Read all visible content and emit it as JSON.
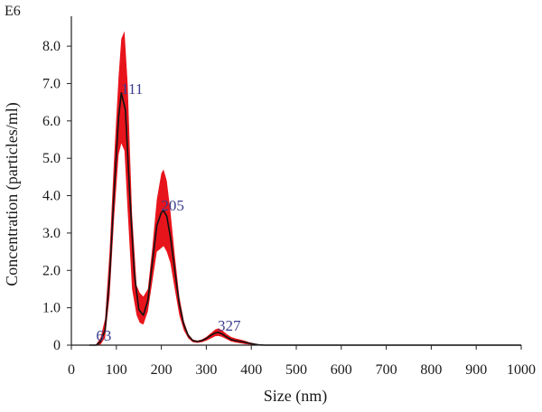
{
  "chart_data": {
    "type": "line",
    "title": "",
    "scale_label": "E6",
    "xlabel": "Size (nm)",
    "ylabel": "Concentration (particles/ml)",
    "xlim": [
      0,
      1000
    ],
    "ylim": [
      0,
      8.8
    ],
    "x_ticks": [
      0,
      100,
      200,
      300,
      400,
      500,
      600,
      700,
      800,
      900,
      1000
    ],
    "x_tick_labels": [
      "0",
      "100",
      "200",
      "300",
      "400",
      "500",
      "600",
      "700",
      "800",
      "900",
      "1000"
    ],
    "y_ticks": [
      0,
      1,
      2,
      3,
      4,
      5,
      6,
      7,
      8
    ],
    "y_tick_labels": [
      "0",
      "1.0",
      "2.0",
      "3.0",
      "4.0",
      "5.0",
      "6.0",
      "7.0",
      "8.0"
    ],
    "grid": false,
    "colors": {
      "mean_line": "#111111",
      "error_band": "#e8141c",
      "peak_labels": "#3b3b8f"
    },
    "series": [
      {
        "role": "mean",
        "x": [
          40,
          55,
          65,
          75,
          85,
          95,
          105,
          111,
          120,
          130,
          140,
          150,
          160,
          170,
          180,
          190,
          200,
          205,
          212,
          220,
          230,
          240,
          250,
          260,
          270,
          280,
          290,
          300,
          310,
          320,
          327,
          335,
          345,
          355,
          365,
          375,
          385,
          395,
          405,
          415,
          430,
          1000
        ],
        "y": [
          0,
          0,
          0.1,
          0.4,
          1.8,
          4.1,
          6.1,
          6.75,
          6.3,
          4.0,
          1.9,
          0.95,
          0.8,
          1.2,
          2.2,
          3.2,
          3.55,
          3.6,
          3.45,
          2.9,
          2.0,
          1.1,
          0.55,
          0.25,
          0.12,
          0.1,
          0.12,
          0.18,
          0.26,
          0.33,
          0.34,
          0.3,
          0.22,
          0.15,
          0.12,
          0.1,
          0.08,
          0.05,
          0.03,
          0.01,
          0,
          0
        ]
      },
      {
        "role": "error_band_upper",
        "x": [
          40,
          55,
          65,
          75,
          85,
          95,
          105,
          111,
          118,
          125,
          135,
          145,
          152,
          160,
          170,
          180,
          190,
          200,
          205,
          212,
          220,
          230,
          240,
          250,
          260,
          270,
          280,
          290,
          300,
          310,
          320,
          327,
          335,
          345,
          355,
          365,
          375,
          385,
          395,
          405,
          415,
          430
        ],
        "y": [
          0,
          0.02,
          0.2,
          0.7,
          2.5,
          5.0,
          7.2,
          8.2,
          8.4,
          7.0,
          3.5,
          1.6,
          1.4,
          1.3,
          1.5,
          2.6,
          3.9,
          4.6,
          4.7,
          4.4,
          3.6,
          2.4,
          1.3,
          0.65,
          0.3,
          0.15,
          0.12,
          0.15,
          0.22,
          0.32,
          0.42,
          0.45,
          0.4,
          0.3,
          0.22,
          0.18,
          0.15,
          0.12,
          0.08,
          0.05,
          0.02,
          0
        ]
      },
      {
        "role": "error_band_lower",
        "x": [
          40,
          55,
          65,
          75,
          85,
          95,
          105,
          111,
          118,
          125,
          135,
          145,
          152,
          160,
          170,
          180,
          190,
          200,
          205,
          212,
          220,
          230,
          240,
          250,
          260,
          270,
          280,
          290,
          300,
          310,
          320,
          327,
          335,
          345,
          355,
          365,
          375,
          385,
          395,
          405,
          415,
          430
        ],
        "y": [
          0,
          0,
          0.02,
          0.2,
          1.3,
          3.4,
          5.1,
          5.4,
          5.2,
          3.6,
          1.5,
          0.8,
          0.6,
          0.55,
          0.9,
          1.7,
          2.5,
          2.6,
          2.65,
          2.5,
          2.2,
          1.5,
          0.8,
          0.4,
          0.18,
          0.08,
          0.06,
          0.08,
          0.12,
          0.18,
          0.24,
          0.25,
          0.22,
          0.16,
          0.1,
          0.07,
          0.05,
          0.03,
          0.02,
          0.01,
          0,
          0
        ]
      }
    ],
    "annotations": [
      {
        "text": "63",
        "x": 63,
        "y": 0
      },
      {
        "text": "111",
        "x": 111,
        "y": 6.75
      },
      {
        "text": "205",
        "x": 205,
        "y": 3.6
      },
      {
        "text": "327",
        "x": 327,
        "y": 0.34
      }
    ]
  }
}
